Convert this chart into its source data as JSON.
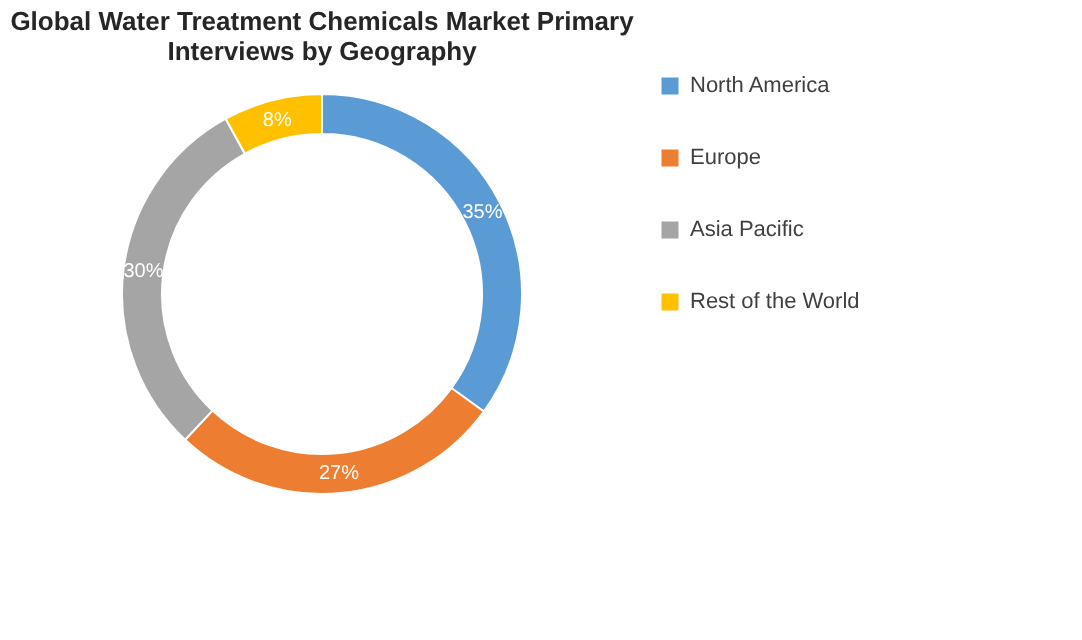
{
  "chart_data": {
    "type": "donut",
    "title": "Global Water Treatment Chemicals Market Primary Interviews by Geography",
    "categories": [
      "North America",
      "Europe",
      "Asia Pacific",
      "Rest of the World"
    ],
    "values": [
      35,
      27,
      30,
      8
    ],
    "colors": [
      "#5b9bd5",
      "#ed7d31",
      "#a5a5a5",
      "#ffc000"
    ],
    "value_labels": [
      "35%",
      "27%",
      "30%",
      "8%"
    ],
    "legend": "right"
  }
}
